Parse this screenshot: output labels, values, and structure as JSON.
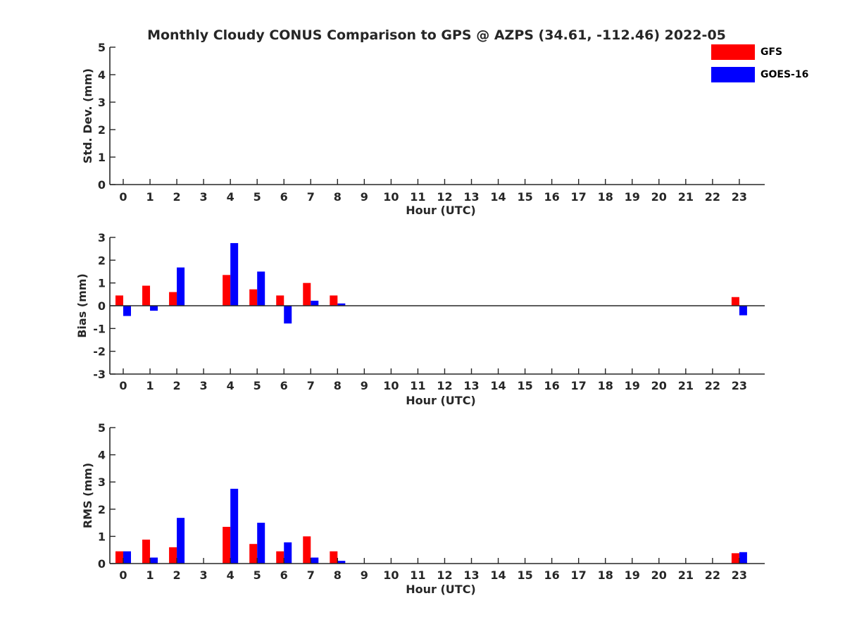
{
  "title": "Monthly Cloudy CONUS Comparison to GPS @ AZPS (34.61, -112.46) 2022-05",
  "legend": {
    "items": [
      {
        "label": "GFS",
        "color": "#ff0000"
      },
      {
        "label": "GOES-16",
        "color": "#0000ff"
      }
    ]
  },
  "chart_data": [
    {
      "type": "bar",
      "title": "Monthly Cloudy CONUS Comparison to GPS @ AZPS (34.61, -112.46) 2022-05",
      "xlabel": "Hour (UTC)",
      "ylabel": "Std. Dev. (mm)",
      "ylim": [
        0,
        5
      ],
      "yticks": [
        0,
        1,
        2,
        3,
        4,
        5
      ],
      "categories": [
        "0",
        "1",
        "2",
        "3",
        "4",
        "5",
        "6",
        "7",
        "8",
        "9",
        "10",
        "11",
        "12",
        "13",
        "14",
        "15",
        "16",
        "17",
        "18",
        "19",
        "20",
        "21",
        "22",
        "23"
      ],
      "series": [
        {
          "name": "GFS",
          "color": "#ff0000",
          "values": [
            null,
            null,
            null,
            null,
            null,
            null,
            null,
            null,
            null,
            null,
            null,
            null,
            null,
            null,
            null,
            null,
            null,
            null,
            null,
            null,
            null,
            null,
            null,
            null
          ]
        },
        {
          "name": "GOES-16",
          "color": "#0000ff",
          "values": [
            null,
            null,
            null,
            null,
            null,
            null,
            null,
            null,
            null,
            null,
            null,
            null,
            null,
            null,
            null,
            null,
            null,
            null,
            null,
            null,
            null,
            null,
            null,
            null
          ]
        }
      ]
    },
    {
      "type": "bar",
      "title": "",
      "xlabel": "Hour (UTC)",
      "ylabel": "Bias (mm)",
      "ylim": [
        -3,
        3
      ],
      "yticks": [
        -3,
        -2,
        -1,
        0,
        1,
        2,
        3
      ],
      "categories": [
        "0",
        "1",
        "2",
        "3",
        "4",
        "5",
        "6",
        "7",
        "8",
        "9",
        "10",
        "11",
        "12",
        "13",
        "14",
        "15",
        "16",
        "17",
        "18",
        "19",
        "20",
        "21",
        "22",
        "23"
      ],
      "series": [
        {
          "name": "GFS",
          "color": "#ff0000",
          "values": [
            0.45,
            0.88,
            0.6,
            null,
            1.35,
            0.72,
            0.45,
            1.0,
            0.45,
            null,
            null,
            null,
            null,
            null,
            null,
            null,
            null,
            null,
            null,
            null,
            null,
            null,
            null,
            0.38
          ]
        },
        {
          "name": "GOES-16",
          "color": "#0000ff",
          "values": [
            -0.45,
            -0.22,
            1.68,
            null,
            2.75,
            1.5,
            -0.78,
            0.22,
            0.1,
            null,
            null,
            null,
            null,
            null,
            null,
            null,
            null,
            null,
            null,
            null,
            null,
            null,
            null,
            -0.42
          ]
        }
      ]
    },
    {
      "type": "bar",
      "title": "",
      "xlabel": "Hour (UTC)",
      "ylabel": "RMS (mm)",
      "ylim": [
        0,
        5
      ],
      "yticks": [
        0,
        1,
        2,
        3,
        4,
        5
      ],
      "categories": [
        "0",
        "1",
        "2",
        "3",
        "4",
        "5",
        "6",
        "7",
        "8",
        "9",
        "10",
        "11",
        "12",
        "13",
        "14",
        "15",
        "16",
        "17",
        "18",
        "19",
        "20",
        "21",
        "22",
        "23"
      ],
      "series": [
        {
          "name": "GFS",
          "color": "#ff0000",
          "values": [
            0.45,
            0.88,
            0.6,
            null,
            1.35,
            0.72,
            0.45,
            1.0,
            0.45,
            null,
            null,
            null,
            null,
            null,
            null,
            null,
            null,
            null,
            null,
            null,
            null,
            null,
            null,
            0.38
          ]
        },
        {
          "name": "GOES-16",
          "color": "#0000ff",
          "values": [
            0.45,
            0.22,
            1.68,
            null,
            2.75,
            1.5,
            0.78,
            0.22,
            0.1,
            null,
            null,
            null,
            null,
            null,
            null,
            null,
            null,
            null,
            null,
            null,
            null,
            null,
            null,
            0.42
          ]
        }
      ]
    }
  ]
}
